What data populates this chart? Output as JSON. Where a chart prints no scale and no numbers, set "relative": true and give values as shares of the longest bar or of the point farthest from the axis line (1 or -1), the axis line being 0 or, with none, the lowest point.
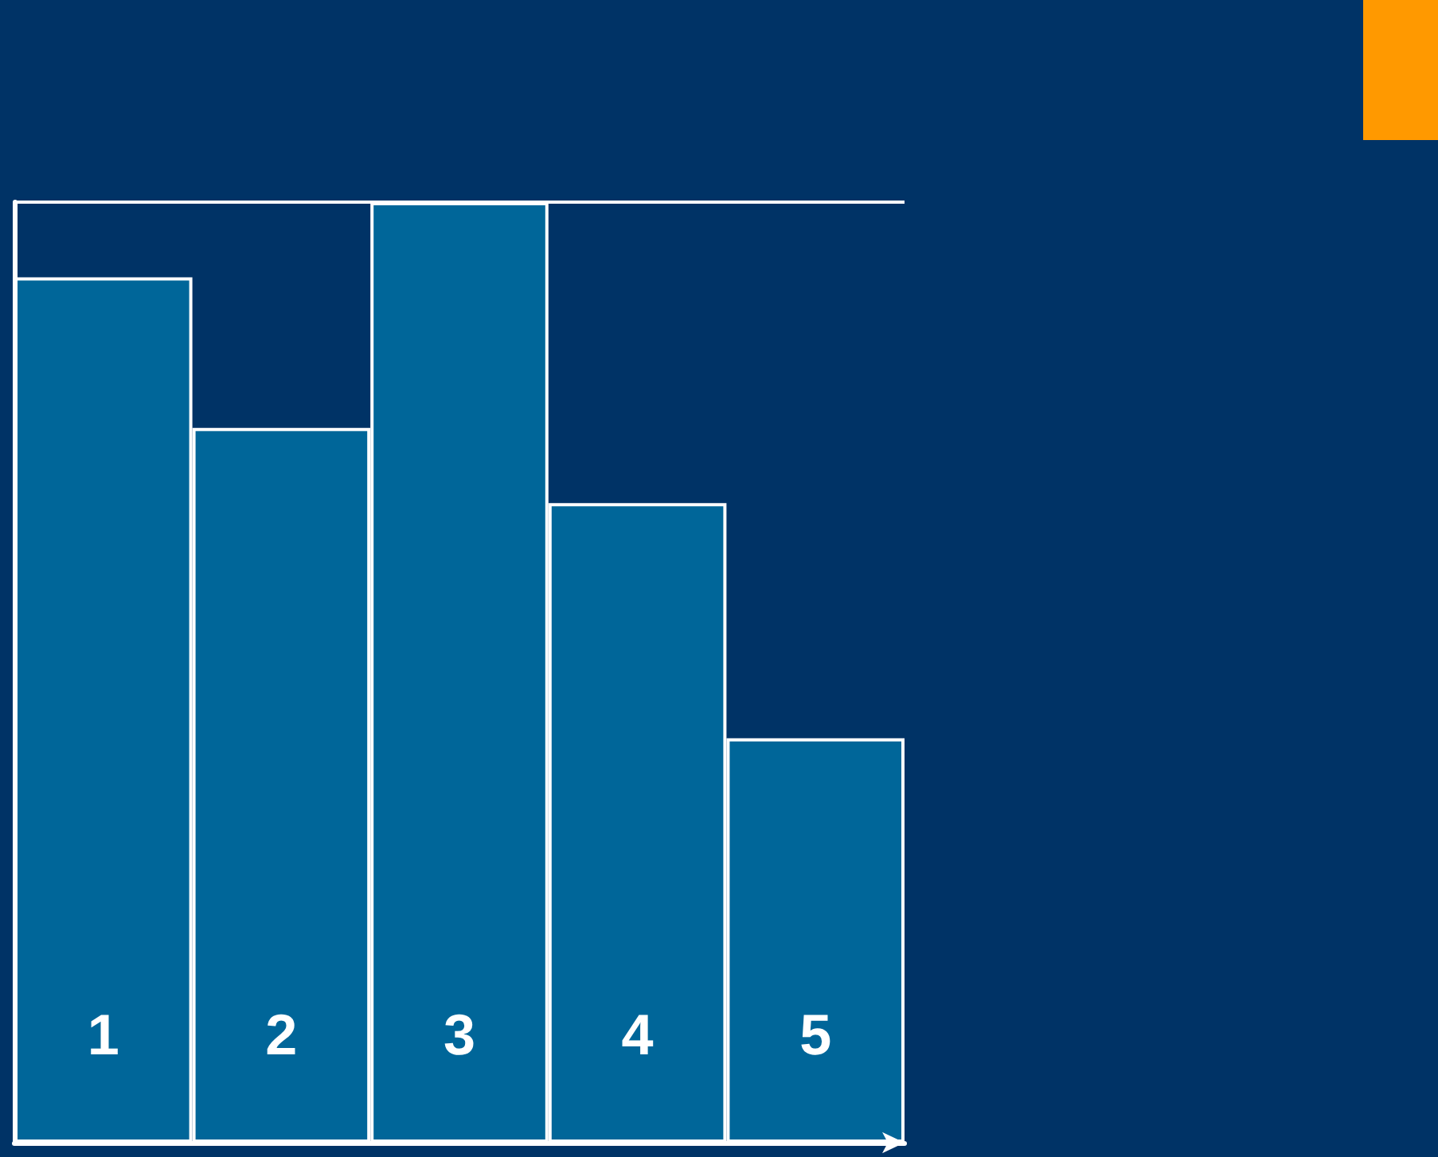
{
  "chart_data": {
    "type": "bar",
    "relative": true,
    "categories": [
      "1",
      "2",
      "3",
      "4",
      "5"
    ],
    "values": [
      0.92,
      0.76,
      1,
      0.68,
      0.43
    ],
    "color": "#006699",
    "ref_lines": [
      {
        "axis": "y",
        "value": 1,
        "color": "#ffffff",
        "line_style": "solid"
      }
    ],
    "grid": false
  }
}
